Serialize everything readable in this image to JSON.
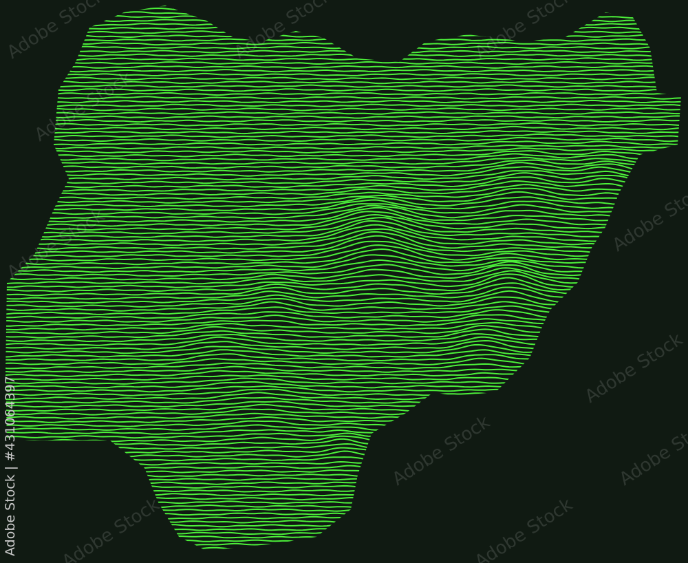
{
  "map": {
    "subject": "Nigeria relief contour lines",
    "line_color": "#4cf03a",
    "background": "#101a12"
  },
  "watermark": {
    "text": "Adobe Stock"
  },
  "credit": {
    "text": "Adobe Stock | #431064397"
  }
}
